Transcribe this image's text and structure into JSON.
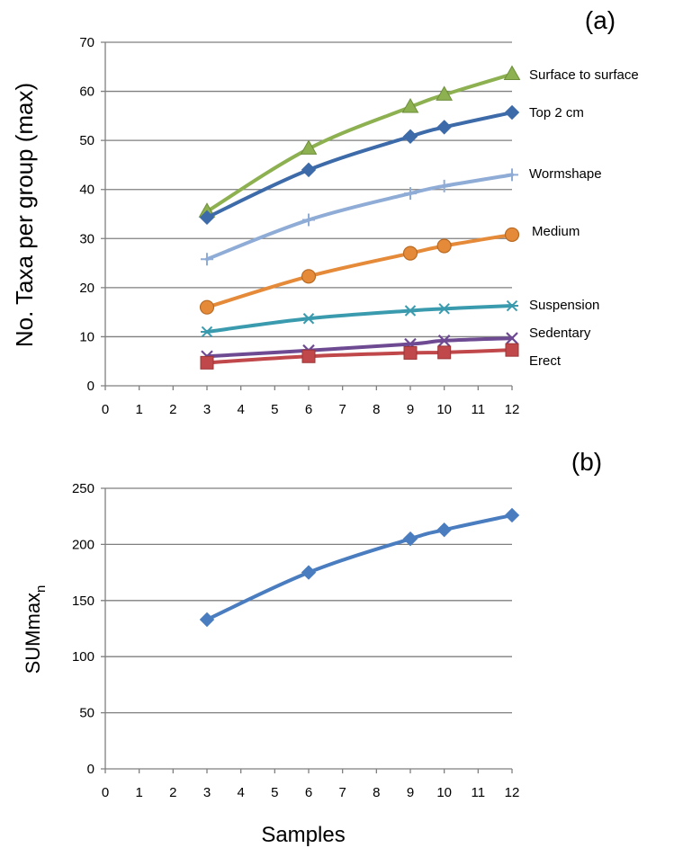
{
  "chart_data": [
    {
      "type": "line",
      "panel_label": "(a)",
      "ylabel": "No. Taxa per group (max)",
      "xlabel": "",
      "xlim": [
        0,
        12
      ],
      "ylim": [
        0,
        70
      ],
      "x_ticks": [
        "0",
        "1",
        "2",
        "3",
        "4",
        "5",
        "6",
        "7",
        "8",
        "9",
        "10",
        "11",
        "12"
      ],
      "y_ticks": [
        "0",
        "10",
        "20",
        "30",
        "40",
        "50",
        "60",
        "70"
      ],
      "grid": "horizontal",
      "x": [
        3,
        6,
        9,
        10,
        12
      ],
      "series": [
        {
          "name": "Surface to surface",
          "color": "#8DB050",
          "marker": "triangle",
          "values": [
            35.5,
            48.3,
            56.8,
            59.3,
            63.5
          ]
        },
        {
          "name": "Top 2 cm",
          "color": "#3D6AA8",
          "marker": "diamond",
          "values": [
            34.3,
            44.0,
            50.8,
            52.7,
            55.7
          ]
        },
        {
          "name": "Wormshape",
          "color": "#8FACD6",
          "marker": "plus",
          "values": [
            25.8,
            33.8,
            39.2,
            40.7,
            43.0
          ]
        },
        {
          "name": "Medium",
          "color": "#E58A38",
          "marker": "circle",
          "values": [
            16.0,
            22.3,
            27.0,
            28.5,
            30.8
          ]
        },
        {
          "name": "Suspension",
          "color": "#3A9BAE",
          "marker": "asterisk",
          "values": [
            11.0,
            13.7,
            15.3,
            15.7,
            16.3
          ]
        },
        {
          "name": "Sedentary",
          "color": "#6E4A93",
          "marker": "x",
          "values": [
            6.0,
            7.2,
            8.5,
            9.2,
            9.7
          ]
        },
        {
          "name": "Erect",
          "color": "#C0474A",
          "marker": "square",
          "values": [
            4.7,
            6.0,
            6.7,
            6.8,
            7.3
          ]
        }
      ]
    },
    {
      "type": "line",
      "panel_label": "(b)",
      "ylabel": "SUMmax",
      "ylabel_subscript": "n",
      "xlabel": "Samples",
      "xlim": [
        0,
        12
      ],
      "ylim": [
        0,
        250
      ],
      "x_ticks": [
        "0",
        "1",
        "2",
        "3",
        "4",
        "5",
        "6",
        "7",
        "8",
        "9",
        "10",
        "11",
        "12"
      ],
      "y_ticks": [
        "0",
        "50",
        "100",
        "150",
        "200",
        "250"
      ],
      "grid": "horizontal",
      "x": [
        3,
        6,
        9,
        10,
        12
      ],
      "series": [
        {
          "name": "",
          "color": "#4A7CC0",
          "marker": "diamond",
          "values": [
            133,
            175,
            205,
            213,
            226
          ]
        }
      ]
    }
  ]
}
